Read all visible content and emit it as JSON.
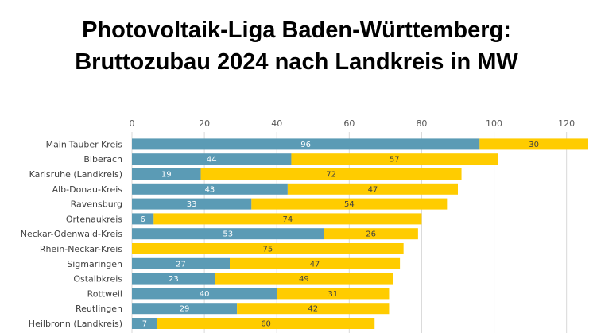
{
  "chart_data": {
    "type": "bar",
    "orientation": "horizontal",
    "stacked": true,
    "title": [
      "Photovoltaik-Liga Baden-Württemberg:",
      "Bruttozubau 2024 nach Landkreis in MW"
    ],
    "xlim": [
      0,
      126
    ],
    "xticks": [
      0,
      20,
      40,
      60,
      80,
      100,
      120
    ],
    "x_axis_position": "top",
    "grid": true,
    "categories": [
      "Main-Tauber-Kreis",
      "Biberach",
      "Karlsruhe (Landkreis)",
      "Alb-Donau-Kreis",
      "Ravensburg",
      "Ortenaukreis",
      "Neckar-Odenwald-Kreis",
      "Rhein-Neckar-Kreis",
      "Sigmaringen",
      "Ostalbkreis",
      "Rottweil",
      "Reutlingen",
      "Heilbronn (Landkreis)"
    ],
    "series": [
      {
        "color": "#5b9bb5",
        "values": [
          96,
          44,
          19,
          43,
          33,
          6,
          53,
          0,
          27,
          23,
          40,
          29,
          7
        ]
      },
      {
        "color": "#ffcc00",
        "values": [
          30,
          57,
          72,
          47,
          54,
          74,
          26,
          75,
          47,
          49,
          31,
          42,
          60
        ]
      }
    ]
  }
}
